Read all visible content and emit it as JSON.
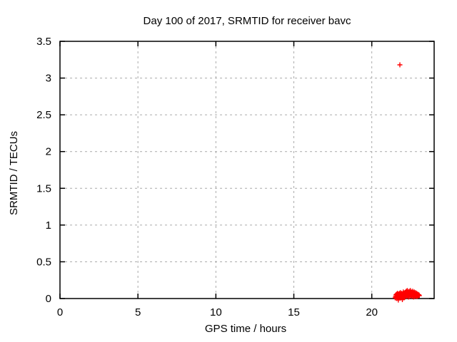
{
  "chart_data": {
    "type": "scatter",
    "title": "Day 100 of 2017, SRMTID for receiver bavc",
    "xlabel": "GPS time / hours",
    "ylabel": "SRMTID / TECUs",
    "xlim": [
      0,
      24
    ],
    "ylim": [
      0,
      3.5
    ],
    "xticks": {
      "values": [
        0,
        5,
        10,
        15,
        20
      ],
      "labels": [
        "0",
        "5",
        "10",
        "15",
        "20"
      ]
    },
    "yticks": {
      "values": [
        0,
        0.5,
        1,
        1.5,
        2,
        2.5,
        3,
        3.5
      ],
      "labels": [
        "0",
        "0.5",
        "1",
        "1.5",
        "2",
        "2.5",
        "3",
        "3.5"
      ]
    },
    "grid": true,
    "grid_style": "dashed",
    "grid_color": "#aaaaaa",
    "frame_color": "#000000",
    "background_color": "#ffffff",
    "legend": "none",
    "marker": {
      "shape": "plus",
      "color": "#ff0000",
      "size": 7
    },
    "series": [
      {
        "name": "SRMTID",
        "points": [
          [
            21.8,
            3.18
          ],
          [
            21.5,
            0.01
          ],
          [
            21.52,
            0.03
          ],
          [
            21.55,
            0.05
          ],
          [
            21.57,
            0.02
          ],
          [
            21.6,
            0.06
          ],
          [
            21.6,
            0.0
          ],
          [
            21.62,
            0.04
          ],
          [
            21.65,
            0.07
          ],
          [
            21.66,
            0.02
          ],
          [
            21.68,
            0.05
          ],
          [
            21.7,
            0.03
          ],
          [
            21.7,
            -0.02
          ],
          [
            21.72,
            0.06
          ],
          [
            21.74,
            0.01
          ],
          [
            21.76,
            0.04
          ],
          [
            21.78,
            0.07
          ],
          [
            21.8,
            0.02
          ],
          [
            21.82,
            0.05
          ],
          [
            21.84,
            0.08
          ],
          [
            21.85,
            0.03
          ],
          [
            21.87,
            0.06
          ],
          [
            21.88,
            0.01
          ],
          [
            21.9,
            0.04
          ],
          [
            21.92,
            0.07
          ],
          [
            21.94,
            0.02
          ],
          [
            21.95,
            0.05
          ],
          [
            21.96,
            -0.015
          ],
          [
            21.98,
            0.03
          ],
          [
            22.0,
            0.06
          ],
          [
            22.02,
            0.09
          ],
          [
            22.04,
            0.04
          ],
          [
            22.05,
            0.01
          ],
          [
            22.07,
            0.07
          ],
          [
            22.08,
            0.03
          ],
          [
            22.1,
            0.05
          ],
          [
            22.12,
            0.08
          ],
          [
            22.14,
            0.02
          ],
          [
            22.15,
            0.06
          ],
          [
            22.17,
            0.04
          ],
          [
            22.18,
            0.09
          ],
          [
            22.2,
            0.05
          ],
          [
            22.22,
            0.1
          ],
          [
            22.24,
            0.07
          ],
          [
            22.25,
            0.03
          ],
          [
            22.27,
            0.06
          ],
          [
            22.28,
            0.11
          ],
          [
            22.3,
            0.08
          ],
          [
            22.32,
            0.04
          ],
          [
            22.34,
            0.09
          ],
          [
            22.35,
            0.05
          ],
          [
            22.36,
            0.02
          ],
          [
            22.38,
            0.07
          ],
          [
            22.4,
            0.1
          ],
          [
            22.42,
            0.06
          ],
          [
            22.44,
            0.03
          ],
          [
            22.45,
            0.08
          ],
          [
            22.47,
            0.05
          ],
          [
            22.48,
            0.11
          ],
          [
            22.5,
            0.07
          ],
          [
            22.52,
            0.04
          ],
          [
            22.54,
            0.09
          ],
          [
            22.55,
            0.06
          ],
          [
            22.57,
            0.03
          ],
          [
            22.58,
            0.08
          ],
          [
            22.6,
            0.05
          ],
          [
            22.62,
            0.1
          ],
          [
            22.64,
            0.07
          ],
          [
            22.65,
            0.04
          ],
          [
            22.67,
            0.08
          ],
          [
            22.68,
            0.02
          ],
          [
            22.7,
            0.06
          ],
          [
            22.72,
            0.09
          ],
          [
            22.74,
            0.05
          ],
          [
            22.75,
            0.03
          ],
          [
            22.77,
            0.07
          ],
          [
            22.78,
            0.04
          ],
          [
            22.8,
            0.08
          ],
          [
            22.82,
            0.05
          ],
          [
            22.84,
            0.03
          ],
          [
            22.85,
            0.06
          ],
          [
            22.87,
            0.04
          ],
          [
            22.88,
            0.07
          ],
          [
            22.9,
            0.05
          ],
          [
            22.92,
            0.03
          ],
          [
            22.94,
            0.06
          ],
          [
            22.95,
            0.04
          ],
          [
            22.97,
            0.05
          ],
          [
            23.0,
            0.04
          ],
          [
            23.02,
            0.05
          ],
          [
            23.05,
            0.04
          ]
        ]
      }
    ]
  }
}
